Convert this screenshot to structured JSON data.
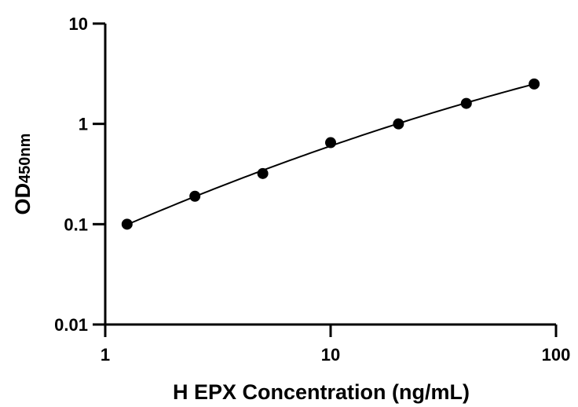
{
  "chart_data": {
    "type": "scatter",
    "title": "",
    "xlabel": "H EPX Concentration (ng/mL)",
    "ylabel": {
      "main": "OD",
      "subscript": "450nm"
    },
    "xscale": "log",
    "yscale": "log",
    "xlim": [
      1,
      100
    ],
    "ylim": [
      0.01,
      10
    ],
    "xticks": [
      {
        "value": 1,
        "label": "1"
      },
      {
        "value": 10,
        "label": "10"
      },
      {
        "value": 100,
        "label": "100"
      }
    ],
    "yticks": [
      {
        "value": 0.01,
        "label": "0.01"
      },
      {
        "value": 0.1,
        "label": "0.1"
      },
      {
        "value": 1,
        "label": "1"
      },
      {
        "value": 10,
        "label": "10"
      }
    ],
    "grid": false,
    "legend": false,
    "series": [
      {
        "x": [
          1.25,
          2.5,
          5,
          10,
          20,
          40,
          80
        ],
        "y": [
          0.1,
          0.19,
          0.32,
          0.65,
          1.0,
          1.6,
          2.5
        ]
      }
    ],
    "fit_curve": true,
    "colors": {
      "points": "#000000",
      "line": "#000000",
      "axes": "#000000"
    }
  }
}
